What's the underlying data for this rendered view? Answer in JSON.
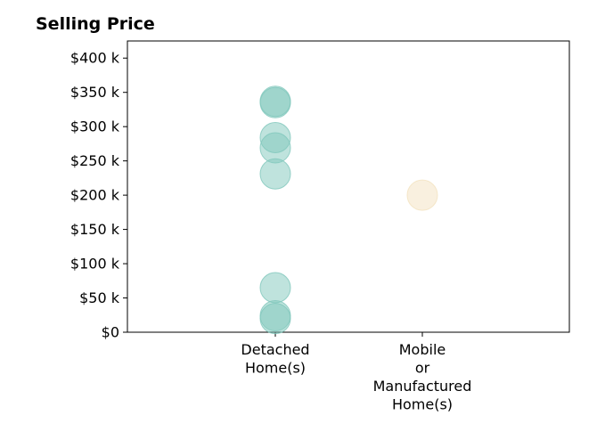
{
  "chart_data": {
    "type": "scatter",
    "title": "Selling Price",
    "xlabel": "",
    "ylabel": "",
    "categories": [
      [
        "Detached",
        "Home(s)"
      ],
      [
        "Mobile",
        "or",
        "Manufactured",
        "Home(s)"
      ]
    ],
    "y_ticks": [
      0,
      50000,
      100000,
      150000,
      200000,
      250000,
      300000,
      350000,
      400000
    ],
    "y_tick_labels": [
      "$0",
      "$50 k",
      "$100 k",
      "$150 k",
      "$200 k",
      "$250 k",
      "$300 k",
      "$350 k",
      "$400 k"
    ],
    "ylim": [
      0,
      425000
    ],
    "grid": false,
    "series": [
      {
        "category_index": 0,
        "color": "#7fc7bb",
        "values": [
          335000,
          337000,
          284000,
          269000,
          231000,
          65000,
          24000,
          20000
        ]
      },
      {
        "category_index": 1,
        "color": "#f3e2bf",
        "values": [
          200000
        ]
      }
    ]
  }
}
